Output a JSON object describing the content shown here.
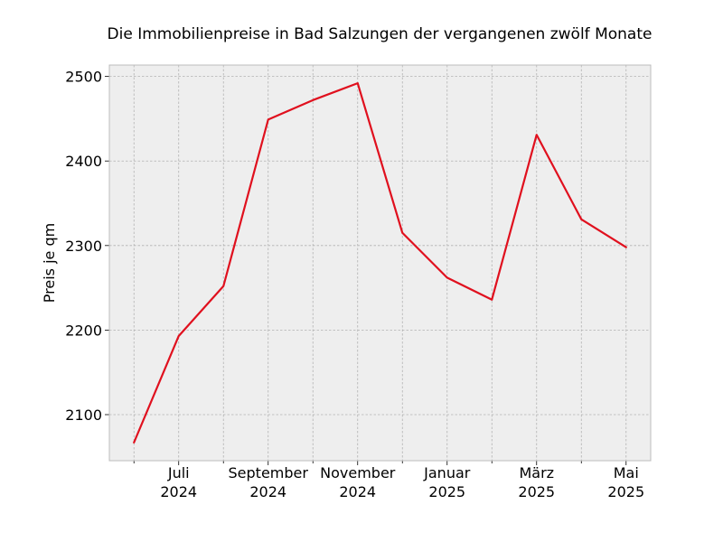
{
  "chart_data": {
    "type": "line",
    "title": "Die Immobilienpreise in Bad Salzungen der vergangenen zwölf Monate",
    "xlabel": "",
    "ylabel": "Preis je qm",
    "x": [
      "2024-06",
      "2024-07",
      "2024-08",
      "2024-09",
      "2024-10",
      "2024-11",
      "2024-12",
      "2025-01",
      "2025-02",
      "2025-03",
      "2025-04",
      "2025-05"
    ],
    "series": [
      {
        "values": [
          2067,
          2193,
          2252,
          2449,
          2472,
          2492,
          2315,
          2262,
          2236,
          2431,
          2331,
          2298
        ]
      }
    ],
    "xticks": [
      {
        "x": "2024-07",
        "line1": "Juli",
        "line2": "2024"
      },
      {
        "x": "2024-09",
        "line1": "September",
        "line2": "2024"
      },
      {
        "x": "2024-11",
        "line1": "November",
        "line2": "2024"
      },
      {
        "x": "2025-01",
        "line1": "Januar",
        "line2": "2025"
      },
      {
        "x": "2025-03",
        "line1": "März",
        "line2": "2025"
      },
      {
        "x": "2025-05",
        "line1": "Mai",
        "line2": "2025"
      }
    ],
    "minor_xticks": [
      "2024-06",
      "2024-08",
      "2024-10",
      "2024-12",
      "2025-02",
      "2025-04"
    ],
    "yticks": [
      2100,
      2200,
      2300,
      2400,
      2500
    ],
    "ylim": [
      2045.5,
      2513.5
    ],
    "grid": true,
    "colors": {
      "line": "#e0101e",
      "plot_background": "#eeeeee",
      "grid": "#b2b2b2",
      "frame": "#bcbcbc"
    }
  }
}
